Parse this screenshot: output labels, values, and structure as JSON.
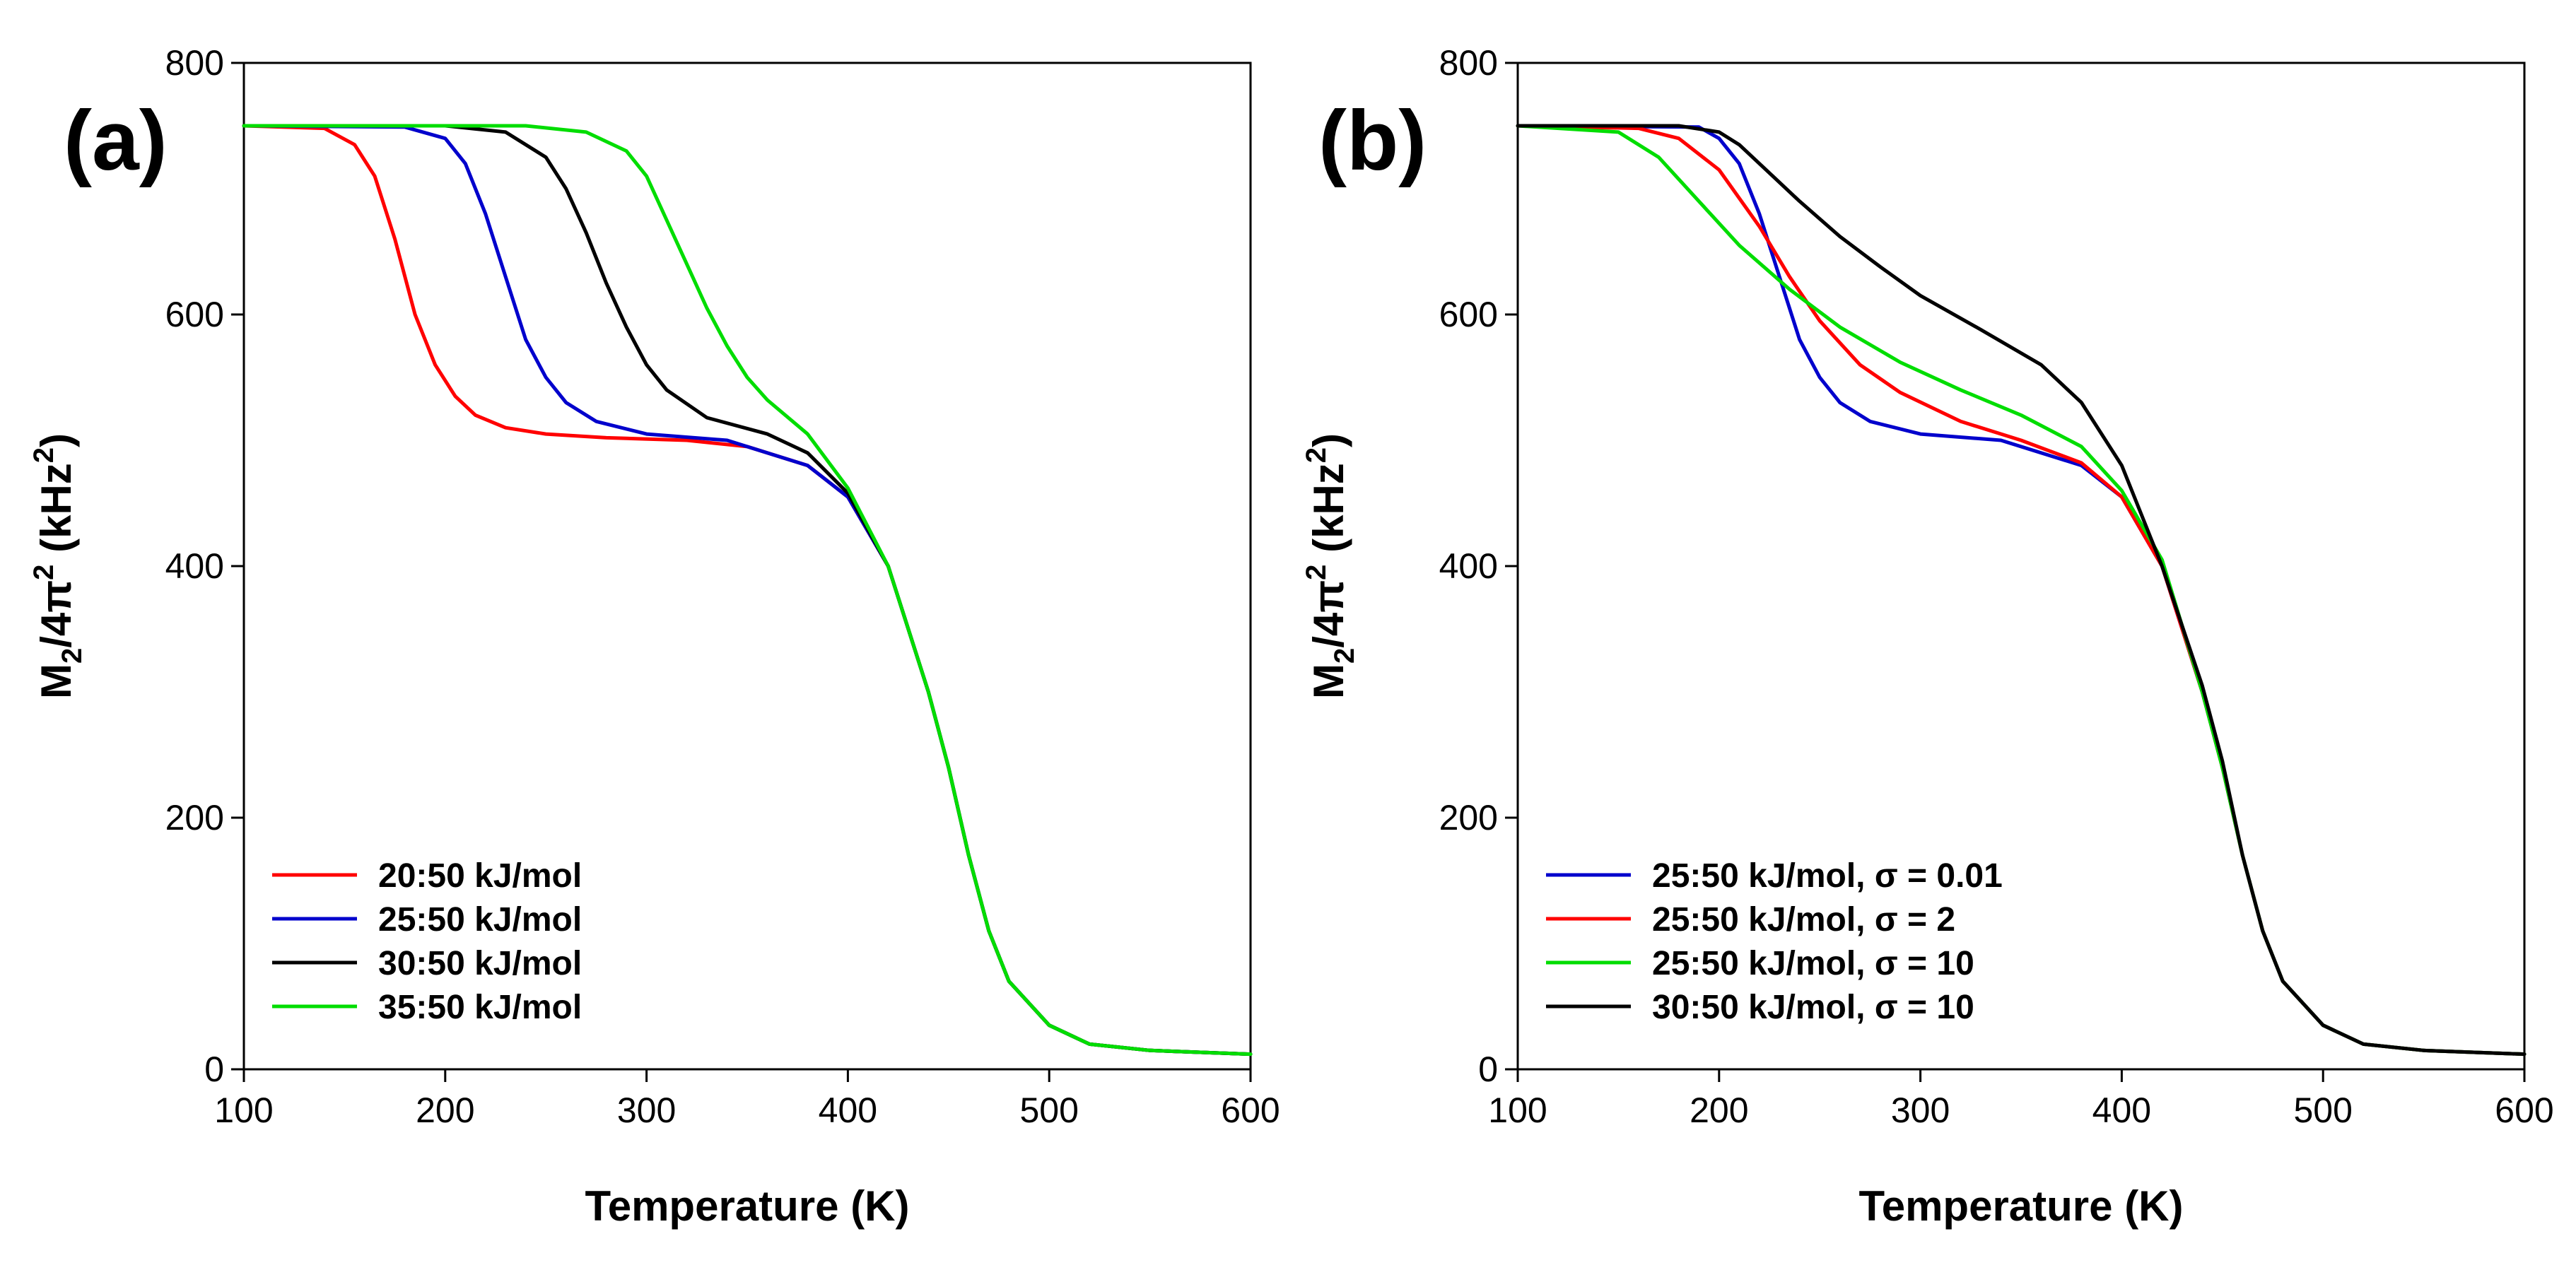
{
  "chart_data": [
    {
      "type": "line",
      "panel_label": "(a)",
      "xlabel": "Temperature (K)",
      "ylabel": {
        "m": "M",
        "sub": "2",
        "slash": "/4",
        "pi": "π",
        "sup": "2",
        "unit_pre": " (kHz",
        "unit_sup": "2",
        "unit_post": ")"
      },
      "xlim": [
        100,
        600
      ],
      "ylim": [
        0,
        800
      ],
      "xticks": [
        "100",
        "200",
        "300",
        "400",
        "500",
        "600"
      ],
      "yticks": [
        "0",
        "200",
        "400",
        "600",
        "800"
      ],
      "legend_position": "lower-left",
      "series": [
        {
          "name": "20:50 kJ/mol",
          "color": "#ff0000",
          "x": [
            100,
            140,
            155,
            165,
            175,
            185,
            195,
            205,
            215,
            230,
            250,
            280,
            320,
            350,
            380,
            400,
            420,
            440,
            450,
            460,
            470,
            480,
            500,
            520,
            550,
            600
          ],
          "y": [
            750,
            748,
            735,
            710,
            660,
            600,
            560,
            535,
            520,
            510,
            505,
            502,
            500,
            495,
            480,
            455,
            400,
            300,
            240,
            170,
            110,
            70,
            35,
            20,
            15,
            12
          ]
        },
        {
          "name": "25:50 kJ/mol",
          "color": "#0000cc",
          "x": [
            100,
            180,
            200,
            210,
            220,
            230,
            240,
            250,
            260,
            275,
            300,
            340,
            380,
            400,
            420,
            440,
            450,
            460,
            470,
            480,
            500,
            520,
            550,
            600
          ],
          "y": [
            750,
            749,
            740,
            720,
            680,
            630,
            580,
            550,
            530,
            515,
            505,
            500,
            480,
            455,
            400,
            300,
            240,
            170,
            110,
            70,
            35,
            20,
            15,
            12
          ]
        },
        {
          "name": "30:50 kJ/mol",
          "color": "#000000",
          "x": [
            100,
            200,
            230,
            250,
            260,
            270,
            280,
            290,
            300,
            310,
            330,
            360,
            380,
            400,
            420,
            440,
            450,
            460,
            470,
            480,
            500,
            520,
            550,
            600
          ],
          "y": [
            750,
            750,
            745,
            725,
            700,
            665,
            625,
            590,
            560,
            540,
            518,
            505,
            490,
            458,
            400,
            300,
            240,
            170,
            110,
            70,
            35,
            20,
            15,
            12
          ]
        },
        {
          "name": "35:50 kJ/mol",
          "color": "#00dd00",
          "x": [
            100,
            240,
            270,
            290,
            300,
            310,
            320,
            330,
            340,
            350,
            360,
            380,
            400,
            420,
            440,
            450,
            460,
            470,
            480,
            500,
            520,
            550,
            600
          ],
          "y": [
            750,
            750,
            745,
            730,
            710,
            675,
            640,
            605,
            575,
            550,
            532,
            505,
            462,
            400,
            300,
            240,
            170,
            110,
            70,
            35,
            20,
            15,
            12
          ]
        }
      ]
    },
    {
      "type": "line",
      "panel_label": "(b)",
      "xlabel": "Temperature (K)",
      "ylabel": {
        "m": "M",
        "sub": "2",
        "slash": "/4",
        "pi": "π",
        "sup": "2",
        "unit_pre": " (kHz",
        "unit_sup": "2",
        "unit_post": ")"
      },
      "xlim": [
        100,
        600
      ],
      "ylim": [
        0,
        800
      ],
      "xticks": [
        "100",
        "200",
        "300",
        "400",
        "500",
        "600"
      ],
      "yticks": [
        "0",
        "200",
        "400",
        "600",
        "800"
      ],
      "legend_position": "lower-left",
      "series": [
        {
          "name": "25:50 kJ/mol, σ = 0.01",
          "color": "#0000cc",
          "x": [
            100,
            190,
            200,
            210,
            220,
            230,
            240,
            250,
            260,
            275,
            300,
            340,
            380,
            400,
            420,
            440,
            450,
            460,
            470,
            480,
            500,
            520,
            550,
            600
          ],
          "y": [
            750,
            749,
            740,
            720,
            680,
            630,
            580,
            550,
            530,
            515,
            505,
            500,
            480,
            455,
            400,
            300,
            240,
            170,
            110,
            70,
            35,
            20,
            15,
            12
          ]
        },
        {
          "name": "25:50 kJ/mol, σ = 2",
          "color": "#ff0000",
          "x": [
            100,
            160,
            180,
            200,
            220,
            235,
            250,
            270,
            290,
            320,
            350,
            380,
            400,
            420,
            440,
            450,
            460,
            470,
            480,
            500,
            520,
            550,
            600
          ],
          "y": [
            750,
            748,
            740,
            715,
            670,
            630,
            595,
            560,
            538,
            515,
            500,
            482,
            455,
            400,
            300,
            240,
            170,
            110,
            70,
            35,
            20,
            15,
            12
          ]
        },
        {
          "name": "25:50 kJ/mol, σ = 10",
          "color": "#00dd00",
          "x": [
            100,
            150,
            170,
            190,
            210,
            235,
            260,
            290,
            320,
            350,
            380,
            400,
            420,
            440,
            450,
            460,
            470,
            480,
            500,
            520,
            550,
            600
          ],
          "y": [
            750,
            745,
            725,
            690,
            655,
            620,
            590,
            562,
            540,
            520,
            495,
            460,
            405,
            300,
            240,
            170,
            110,
            70,
            35,
            20,
            15,
            12
          ]
        },
        {
          "name": "30:50 kJ/mol, σ = 10",
          "color": "#000000",
          "x": [
            100,
            180,
            200,
            210,
            220,
            240,
            260,
            280,
            300,
            330,
            360,
            380,
            400,
            420,
            440,
            450,
            460,
            470,
            480,
            500,
            520,
            550,
            600
          ],
          "y": [
            750,
            750,
            745,
            735,
            720,
            690,
            662,
            638,
            615,
            588,
            560,
            530,
            480,
            400,
            305,
            245,
            170,
            110,
            70,
            35,
            20,
            15,
            12
          ]
        }
      ]
    }
  ]
}
